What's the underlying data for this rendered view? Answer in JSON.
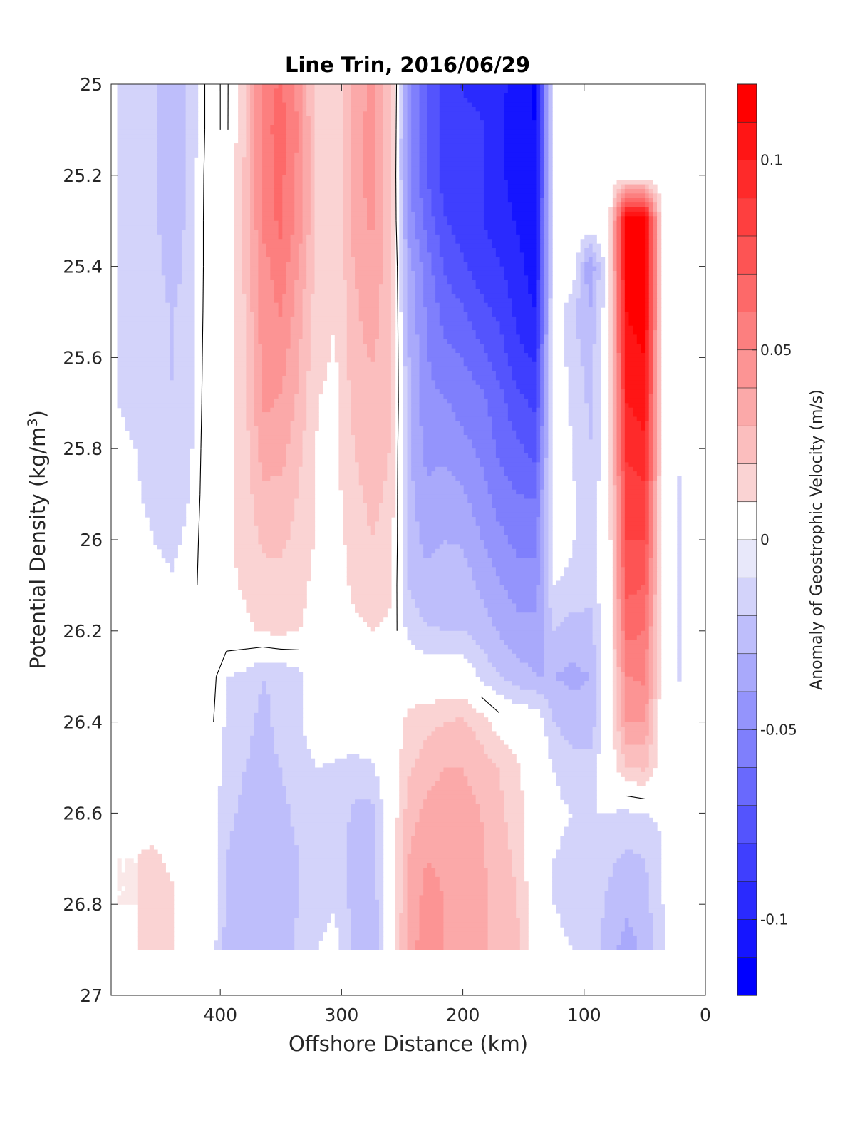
{
  "chart_data": {
    "type": "heatmap",
    "title": "Line Trin, 2016/06/29",
    "xlabel": "Offshore Distance (km)",
    "ylabel_main": "Potential Density (kg/m",
    "ylabel_sup": "3",
    "ylabel_close": ")",
    "xlim": [
      490,
      0
    ],
    "ylim": [
      25,
      27
    ],
    "y_reversed": true,
    "x_ticks": [
      400,
      300,
      200,
      100,
      0
    ],
    "x_tick_labels": [
      "400",
      "300",
      "200",
      "100",
      "0"
    ],
    "y_ticks": [
      25,
      25.2,
      25.4,
      25.6,
      25.8,
      26,
      26.2,
      26.4,
      26.6,
      26.8,
      27
    ],
    "y_tick_labels": [
      "25",
      "25.2",
      "25.4",
      "25.6",
      "25.8",
      "26",
      "26.2",
      "26.4",
      "26.6",
      "26.8",
      "27"
    ],
    "colorbar": {
      "label": "Anomaly of Geostrophic Velocity (m/s)",
      "range": [
        -0.12,
        0.12
      ],
      "step": 0.01,
      "ticks": [
        0.1,
        0.05,
        0,
        -0.05,
        -0.1
      ],
      "tick_labels": [
        "0.1",
        "0.05",
        "0",
        "-0.05",
        "-0.1"
      ],
      "neg_color": "#0000ff",
      "pos_color": "#ff0000",
      "zero_color": "#ffffff"
    },
    "zero_contour_color": "#000000",
    "z_grid": {
      "x": [
        485,
        470,
        455,
        440,
        425,
        410,
        395,
        380,
        365,
        350,
        335,
        320,
        305,
        290,
        275,
        260,
        245,
        230,
        215,
        200,
        185,
        170,
        155,
        140,
        125,
        110,
        95,
        80,
        65,
        50,
        35,
        20
      ],
      "y": [
        25.0,
        25.1,
        25.2,
        25.3,
        25.4,
        25.5,
        25.6,
        25.7,
        25.8,
        25.9,
        26.0,
        26.1,
        26.2,
        26.3,
        26.4,
        26.5,
        26.6,
        26.7,
        26.8,
        26.9
      ],
      "values": [
        [
          -0.013,
          -0.016,
          -0.019,
          -0.028,
          -0.018,
          0.004,
          -0.002,
          0.018,
          0.055,
          0.061,
          0.047,
          0.012,
          0.01,
          0.034,
          0.043,
          0.025,
          -0.046,
          -0.07,
          -0.084,
          -0.091,
          -0.093,
          -0.097,
          -0.104,
          -0.112,
          0.0,
          0.0,
          0.0,
          0.0,
          0.0,
          0.0,
          0.0,
          0.0
        ],
        [
          -0.013,
          -0.016,
          -0.019,
          -0.028,
          -0.018,
          0.004,
          -0.002,
          0.02,
          0.054,
          0.066,
          0.048,
          0.014,
          0.012,
          0.036,
          0.043,
          0.024,
          -0.048,
          -0.071,
          -0.083,
          -0.086,
          -0.089,
          -0.099,
          -0.106,
          -0.11,
          0.0,
          0.0,
          0.0,
          0.0,
          0.0,
          0.0,
          0.0,
          0.0
        ],
        [
          -0.012,
          -0.016,
          -0.019,
          -0.028,
          -0.016,
          0.005,
          -0.001,
          0.021,
          0.053,
          0.063,
          0.047,
          0.017,
          0.013,
          0.036,
          0.044,
          0.022,
          -0.047,
          -0.069,
          -0.085,
          -0.089,
          -0.089,
          -0.098,
          -0.104,
          -0.11,
          0.0,
          0.0,
          0.0,
          0.0,
          0.0,
          0.0,
          0.0,
          0.0
        ],
        [
          -0.012,
          -0.015,
          -0.018,
          -0.026,
          -0.017,
          0.006,
          0.001,
          0.021,
          0.052,
          0.063,
          0.045,
          0.018,
          0.012,
          0.034,
          0.042,
          0.022,
          -0.044,
          -0.063,
          -0.079,
          -0.086,
          -0.089,
          -0.096,
          -0.101,
          -0.109,
          0.0,
          0.0,
          0.0,
          0.0,
          0.121,
          0.121,
          0.0,
          0.0
        ],
        [
          -0.011,
          -0.013,
          -0.016,
          -0.024,
          -0.017,
          0.006,
          0.003,
          0.021,
          0.046,
          0.056,
          0.039,
          0.016,
          0.011,
          0.03,
          0.038,
          0.023,
          -0.035,
          -0.055,
          -0.071,
          -0.078,
          -0.085,
          -0.089,
          -0.096,
          -0.107,
          0.0,
          0.0,
          -0.04,
          0.0,
          0.116,
          0.12,
          0.0,
          0.0
        ],
        [
          -0.011,
          -0.012,
          -0.015,
          -0.021,
          -0.015,
          0.006,
          0.004,
          0.02,
          0.044,
          0.051,
          0.034,
          0.013,
          0.01,
          0.027,
          0.036,
          0.023,
          -0.031,
          -0.051,
          -0.064,
          -0.069,
          -0.077,
          -0.082,
          -0.093,
          -0.1,
          0.0,
          -0.018,
          -0.03,
          0.0,
          0.11,
          0.116,
          0.0,
          0.0
        ],
        [
          -0.01,
          -0.013,
          -0.015,
          -0.021,
          -0.015,
          0.007,
          0.005,
          0.019,
          0.043,
          0.045,
          0.03,
          0.012,
          0.009,
          0.026,
          0.031,
          0.023,
          -0.029,
          -0.049,
          -0.057,
          -0.06,
          -0.067,
          -0.075,
          -0.087,
          -0.091,
          0.0,
          -0.015,
          -0.025,
          0.0,
          0.105,
          0.11,
          0.0,
          0.0
        ],
        [
          -0.01,
          -0.012,
          -0.015,
          -0.019,
          -0.013,
          0.007,
          0.006,
          0.017,
          0.042,
          0.039,
          0.028,
          0.01,
          0.008,
          0.022,
          0.027,
          0.023,
          -0.027,
          -0.047,
          -0.049,
          -0.054,
          -0.057,
          -0.066,
          -0.077,
          -0.082,
          0.0,
          -0.012,
          -0.022,
          0.0,
          0.1,
          0.105,
          0.0,
          0.0
        ],
        [
          -0.008,
          -0.01,
          -0.013,
          -0.017,
          -0.012,
          0.008,
          0.006,
          0.015,
          0.034,
          0.035,
          0.022,
          0.009,
          0.008,
          0.02,
          0.025,
          0.02,
          -0.027,
          -0.043,
          -0.042,
          -0.047,
          -0.052,
          -0.062,
          -0.068,
          -0.074,
          0.0,
          -0.01,
          -0.02,
          0.0,
          0.092,
          0.097,
          0.0,
          -0.01
        ],
        [
          -0.007,
          -0.009,
          -0.012,
          -0.014,
          -0.01,
          0.008,
          0.007,
          0.014,
          0.028,
          0.027,
          0.019,
          0.008,
          0.007,
          0.017,
          0.023,
          0.018,
          -0.026,
          -0.038,
          -0.036,
          -0.039,
          -0.046,
          -0.055,
          -0.06,
          -0.061,
          0.0,
          -0.008,
          -0.018,
          0.0,
          0.085,
          0.088,
          0.0,
          -0.012
        ],
        [
          -0.005,
          -0.007,
          -0.01,
          -0.012,
          -0.008,
          0.009,
          0.008,
          0.013,
          0.022,
          0.022,
          0.017,
          0.008,
          0.006,
          0.014,
          0.02,
          0.016,
          -0.024,
          -0.033,
          -0.03,
          -0.031,
          -0.04,
          -0.047,
          -0.053,
          -0.054,
          -0.005,
          -0.009,
          -0.016,
          0.0,
          0.08,
          0.08,
          0.0,
          -0.014
        ],
        [
          -0.003,
          -0.005,
          -0.007,
          -0.009,
          -0.006,
          0.009,
          0.008,
          0.011,
          0.016,
          0.017,
          0.014,
          0.006,
          0.005,
          0.012,
          0.015,
          0.012,
          -0.02,
          -0.027,
          -0.025,
          -0.025,
          -0.032,
          -0.039,
          -0.045,
          -0.045,
          -0.01,
          -0.012,
          -0.015,
          0.0,
          0.073,
          0.07,
          0.0,
          -0.014
        ],
        [
          0.0,
          0.0,
          0.0,
          0.0,
          0.0,
          0.009,
          0.008,
          0.008,
          0.011,
          0.012,
          0.01,
          0.005,
          0.004,
          0.008,
          0.01,
          0.008,
          -0.013,
          -0.019,
          -0.02,
          -0.02,
          -0.025,
          -0.031,
          -0.036,
          -0.036,
          -0.02,
          -0.025,
          -0.025,
          0.0,
          0.063,
          0.06,
          0.0,
          -0.014
        ],
        [
          0.0,
          0.0,
          0.0,
          0.0,
          0.0,
          0.008,
          -0.01,
          -0.012,
          -0.02,
          -0.018,
          -0.014,
          0.0,
          0.0,
          0.0,
          0.0,
          0.0,
          0.0,
          0.0,
          0.0,
          0.0,
          -0.012,
          -0.02,
          -0.026,
          -0.03,
          -0.03,
          -0.032,
          -0.03,
          0.0,
          0.05,
          0.052,
          0.0,
          -0.012
        ],
        [
          0.0,
          0.0,
          0.0,
          0.0,
          0.0,
          0.005,
          -0.012,
          -0.018,
          -0.022,
          -0.018,
          -0.012,
          0.0,
          0.0,
          0.0,
          0.0,
          0.0,
          0.014,
          0.017,
          0.02,
          0.022,
          0.015,
          0.005,
          0.0,
          0.0,
          -0.02,
          -0.026,
          -0.028,
          0.0,
          0.04,
          0.04,
          0.0,
          0.0
        ],
        [
          0.005,
          0.003,
          0.0,
          0.0,
          0.0,
          0.0,
          -0.014,
          -0.02,
          -0.022,
          -0.02,
          -0.016,
          -0.01,
          -0.012,
          -0.014,
          -0.012,
          0.0,
          0.018,
          0.025,
          0.03,
          0.03,
          0.025,
          0.02,
          0.012,
          0.0,
          -0.01,
          -0.015,
          -0.015,
          0.0,
          0.02,
          0.022,
          0.0,
          0.005
        ],
        [
          0.008,
          0.008,
          0.005,
          0.0,
          0.0,
          0.0,
          -0.018,
          -0.022,
          -0.024,
          -0.022,
          -0.018,
          -0.012,
          -0.014,
          -0.022,
          -0.024,
          0.0,
          0.025,
          0.033,
          0.036,
          0.034,
          0.03,
          0.022,
          0.015,
          0.0,
          -0.008,
          -0.01,
          -0.01,
          -0.01,
          -0.012,
          -0.01,
          -0.008,
          0.0
        ],
        [
          0.01,
          0.01,
          0.012,
          0.008,
          0.0,
          0.0,
          -0.02,
          -0.024,
          -0.026,
          -0.024,
          -0.02,
          -0.014,
          -0.012,
          -0.024,
          -0.026,
          0.0,
          0.03,
          0.04,
          0.038,
          0.038,
          0.032,
          0.024,
          0.018,
          0.0,
          -0.01,
          -0.012,
          -0.014,
          -0.018,
          -0.022,
          -0.02,
          -0.01,
          0.0
        ],
        [
          0.01,
          0.01,
          0.012,
          0.012,
          0.0,
          0.0,
          -0.022,
          -0.028,
          -0.026,
          -0.024,
          -0.02,
          -0.012,
          -0.01,
          -0.024,
          -0.028,
          0.0,
          0.032,
          0.044,
          0.04,
          0.038,
          0.032,
          0.026,
          0.02,
          0.0,
          -0.01,
          -0.012,
          -0.014,
          -0.022,
          -0.028,
          -0.024,
          -0.01,
          0.0
        ],
        [
          0.008,
          0.01,
          0.01,
          0.01,
          0.0,
          0.0,
          -0.024,
          -0.03,
          -0.026,
          -0.024,
          -0.018,
          -0.01,
          -0.008,
          -0.022,
          -0.03,
          0.0,
          0.035,
          0.046,
          0.04,
          0.038,
          0.032,
          0.026,
          0.022,
          0.0,
          -0.008,
          -0.01,
          -0.012,
          -0.026,
          -0.034,
          -0.028,
          -0.012,
          0.0
        ]
      ]
    }
  }
}
